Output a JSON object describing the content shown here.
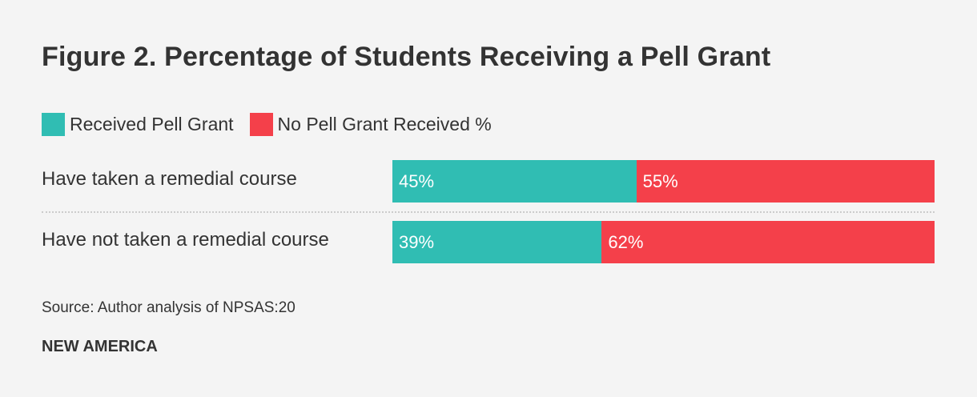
{
  "chart_data": {
    "type": "bar",
    "stacked": true,
    "orientation": "horizontal",
    "title": "Figure 2. Percentage of Students Receiving a Pell Grant",
    "categories": [
      "Have taken a remedial course",
      "Have not taken a remedial course"
    ],
    "series": [
      {
        "name": "Received Pell Grant",
        "color": "#30bdb3",
        "values": [
          45,
          39
        ],
        "labels": [
          "45%",
          "39%"
        ]
      },
      {
        "name": "No Pell Grant Received %",
        "color": "#f4404a",
        "values": [
          55,
          62
        ],
        "labels": [
          "55%",
          "62%"
        ]
      }
    ],
    "legend_position": "top-left",
    "source": "Source: Author analysis of NPSAS:20",
    "brand": "NEW AMERICA"
  }
}
